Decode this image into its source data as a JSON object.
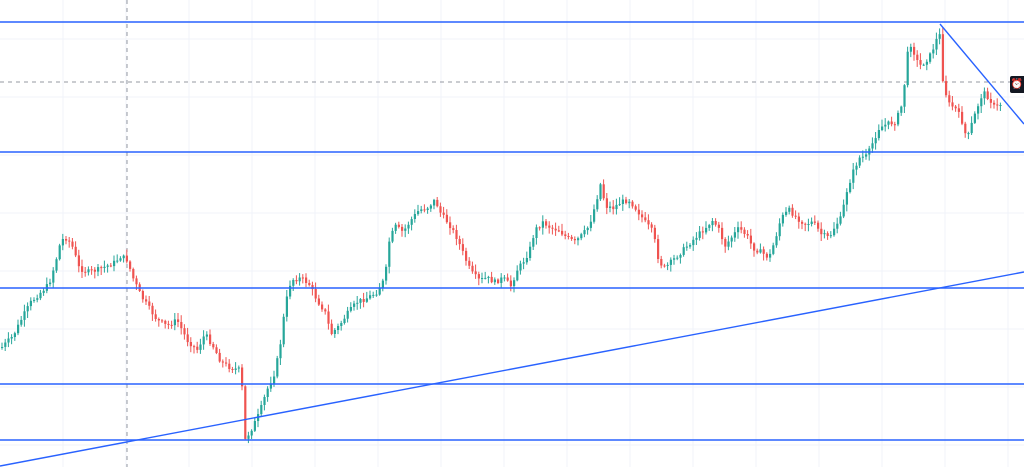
{
  "chart_data": {
    "type": "candlestick",
    "ylim": [
      0,
      467
    ],
    "colors": {
      "up": "#26a69a",
      "down": "#ef5350",
      "lines": "#2962ff",
      "grid": "#f0f3fa",
      "crosshair": "#9598a1"
    },
    "horizontal_levels": [
      22,
      152,
      288,
      384,
      440
    ],
    "trendlines": [
      {
        "name": "rising-support",
        "from": [
          0,
          466
        ],
        "to": [
          1024,
          272
        ]
      },
      {
        "name": "falling-resistance",
        "from": [
          940,
          24
        ],
        "to": [
          1024,
          124
        ]
      }
    ],
    "close_path": [
      [
        0,
        348
      ],
      [
        12,
        336
      ],
      [
        22,
        316
      ],
      [
        30,
        302
      ],
      [
        40,
        292
      ],
      [
        48,
        284
      ],
      [
        54,
        264
      ],
      [
        60,
        240
      ],
      [
        66,
        238
      ],
      [
        72,
        248
      ],
      [
        78,
        268
      ],
      [
        86,
        272
      ],
      [
        96,
        270
      ],
      [
        106,
        266
      ],
      [
        114,
        262
      ],
      [
        120,
        256
      ],
      [
        126,
        260
      ],
      [
        132,
        278
      ],
      [
        140,
        296
      ],
      [
        148,
        308
      ],
      [
        156,
        320
      ],
      [
        166,
        326
      ],
      [
        176,
        320
      ],
      [
        186,
        340
      ],
      [
        196,
        350
      ],
      [
        204,
        334
      ],
      [
        212,
        346
      ],
      [
        220,
        362
      ],
      [
        230,
        368
      ],
      [
        240,
        370
      ],
      [
        244,
        440
      ],
      [
        250,
        430
      ],
      [
        258,
        414
      ],
      [
        266,
        390
      ],
      [
        274,
        372
      ],
      [
        280,
        340
      ],
      [
        284,
        306
      ],
      [
        290,
        280
      ],
      [
        300,
        278
      ],
      [
        308,
        284
      ],
      [
        316,
        300
      ],
      [
        324,
        312
      ],
      [
        330,
        334
      ],
      [
        338,
        326
      ],
      [
        346,
        314
      ],
      [
        356,
        302
      ],
      [
        366,
        298
      ],
      [
        376,
        292
      ],
      [
        384,
        278
      ],
      [
        388,
        242
      ],
      [
        394,
        226
      ],
      [
        402,
        232
      ],
      [
        410,
        220
      ],
      [
        418,
        210
      ],
      [
        426,
        208
      ],
      [
        434,
        200
      ],
      [
        440,
        214
      ],
      [
        448,
        224
      ],
      [
        456,
        238
      ],
      [
        464,
        258
      ],
      [
        470,
        272
      ],
      [
        478,
        280
      ],
      [
        486,
        278
      ],
      [
        494,
        282
      ],
      [
        502,
        278
      ],
      [
        510,
        286
      ],
      [
        516,
        270
      ],
      [
        522,
        262
      ],
      [
        528,
        252
      ],
      [
        534,
        230
      ],
      [
        542,
        222
      ],
      [
        550,
        228
      ],
      [
        558,
        230
      ],
      [
        566,
        238
      ],
      [
        574,
        242
      ],
      [
        582,
        234
      ],
      [
        588,
        226
      ],
      [
        594,
        206
      ],
      [
        600,
        182
      ],
      [
        604,
        206
      ],
      [
        612,
        208
      ],
      [
        620,
        202
      ],
      [
        628,
        200
      ],
      [
        636,
        210
      ],
      [
        644,
        222
      ],
      [
        652,
        232
      ],
      [
        658,
        262
      ],
      [
        664,
        268
      ],
      [
        672,
        260
      ],
      [
        680,
        252
      ],
      [
        688,
        244
      ],
      [
        696,
        236
      ],
      [
        704,
        228
      ],
      [
        712,
        220
      ],
      [
        718,
        230
      ],
      [
        724,
        246
      ],
      [
        730,
        238
      ],
      [
        738,
        228
      ],
      [
        746,
        236
      ],
      [
        752,
        248
      ],
      [
        760,
        252
      ],
      [
        768,
        258
      ],
      [
        774,
        240
      ],
      [
        780,
        218
      ],
      [
        788,
        210
      ],
      [
        796,
        218
      ],
      [
        804,
        224
      ],
      [
        812,
        222
      ],
      [
        820,
        234
      ],
      [
        828,
        238
      ],
      [
        834,
        226
      ],
      [
        840,
        218
      ],
      [
        846,
        190
      ],
      [
        852,
        172
      ],
      [
        858,
        158
      ],
      [
        866,
        156
      ],
      [
        872,
        142
      ],
      [
        878,
        128
      ],
      [
        886,
        124
      ],
      [
        894,
        122
      ],
      [
        900,
        108
      ],
      [
        904,
        80
      ],
      [
        908,
        40
      ],
      [
        912,
        50
      ],
      [
        918,
        66
      ],
      [
        924,
        62
      ],
      [
        930,
        54
      ],
      [
        936,
        38
      ],
      [
        940,
        34
      ],
      [
        942,
        84
      ],
      [
        948,
        104
      ],
      [
        954,
        108
      ],
      [
        960,
        118
      ],
      [
        966,
        140
      ],
      [
        970,
        126
      ],
      [
        976,
        108
      ],
      [
        982,
        92
      ],
      [
        988,
        98
      ],
      [
        994,
        108
      ],
      [
        1000,
        104
      ]
    ]
  },
  "alert_badge": {
    "label": "⏰",
    "icon": "alarm-clock-icon"
  }
}
